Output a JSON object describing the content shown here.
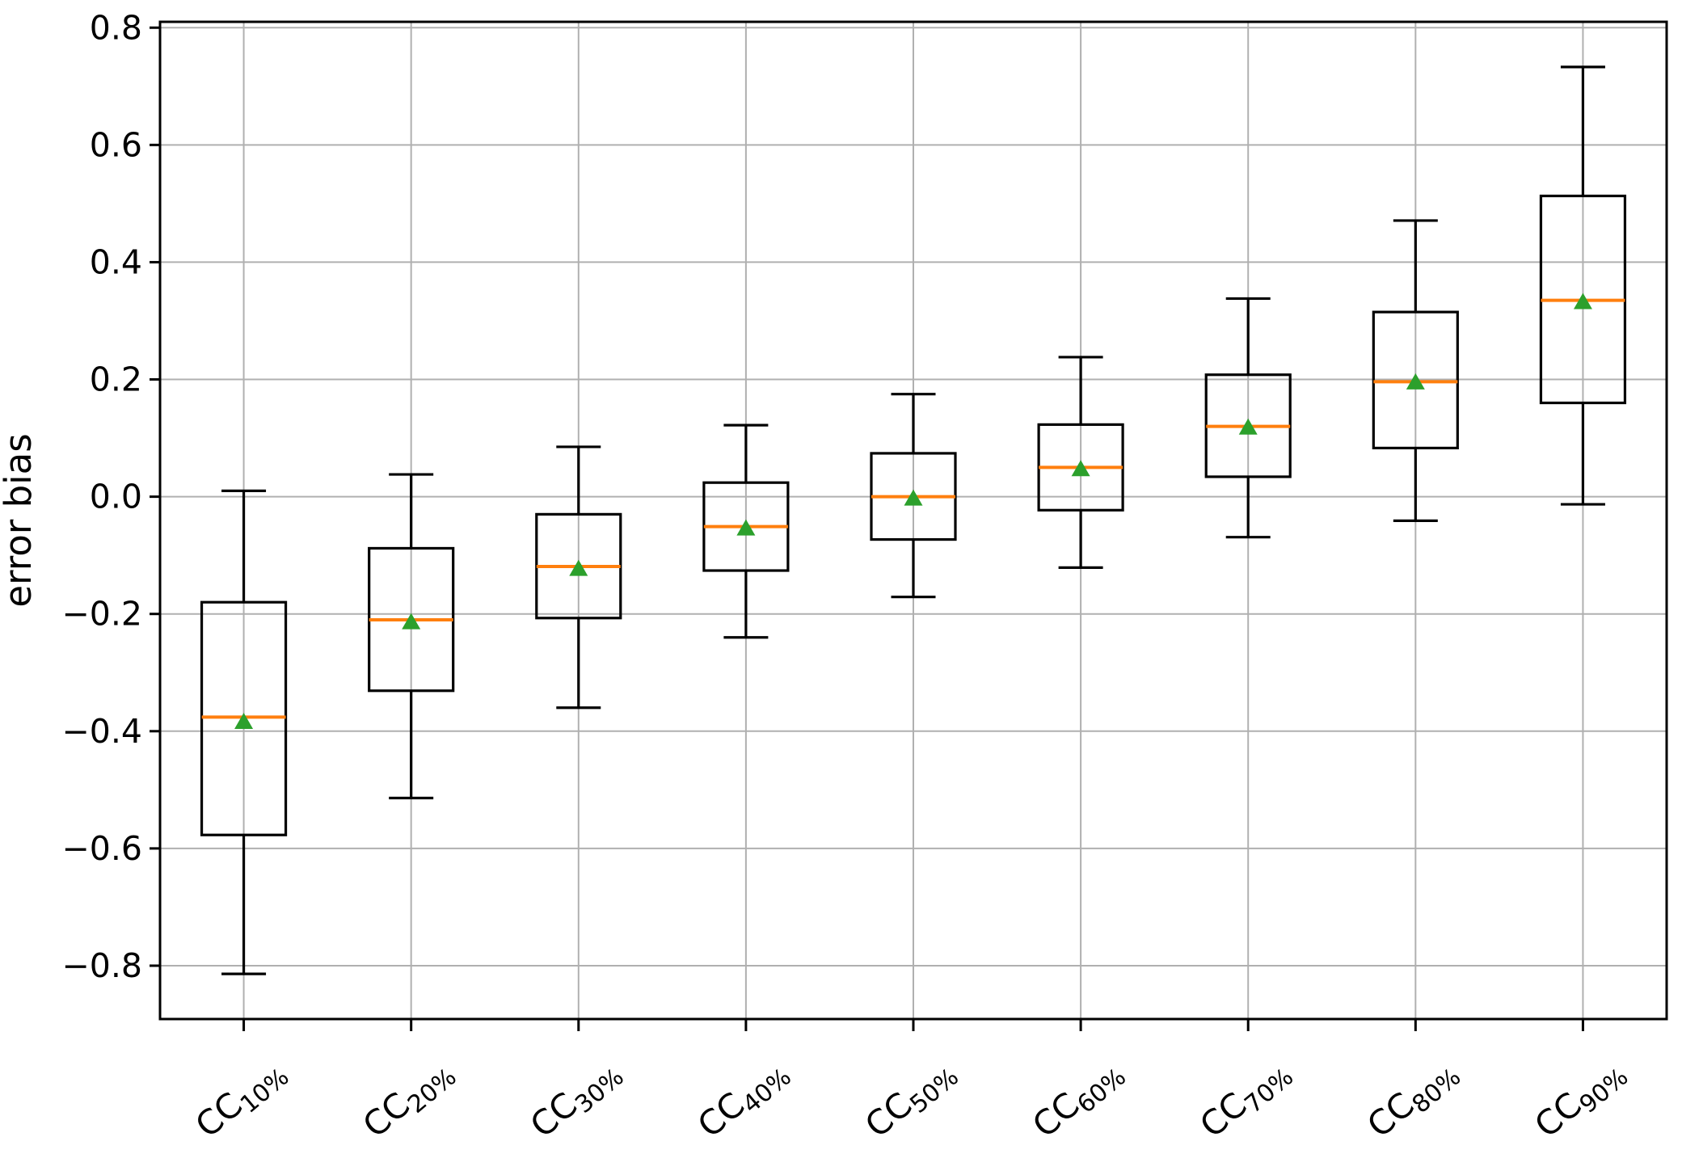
{
  "chart_data": {
    "type": "boxplot",
    "title": "",
    "xlabel": "",
    "ylabel": "error bias",
    "ylim": [
      -0.891,
      0.81
    ],
    "yticks": [
      0.8,
      0.6,
      0.4,
      0.2,
      0.0,
      -0.2,
      -0.4,
      -0.6,
      -0.8
    ],
    "ytick_labels": [
      "0.8",
      "0.6",
      "0.4",
      "0.2",
      "0.0",
      "−0.2",
      "−0.4",
      "−0.6",
      "−0.8"
    ],
    "grid": true,
    "legend": "none",
    "x_tick_rotation_deg": 40,
    "categories": [
      "CC10%",
      "CC20%",
      "CC30%",
      "CC40%",
      "CC50%",
      "CC60%",
      "CC70%",
      "CC80%",
      "CC90%"
    ],
    "category_parts": [
      {
        "base": "CC",
        "sub": "10%"
      },
      {
        "base": "CC",
        "sub": "20%"
      },
      {
        "base": "CC",
        "sub": "30%"
      },
      {
        "base": "CC",
        "sub": "40%"
      },
      {
        "base": "CC",
        "sub": "50%"
      },
      {
        "base": "CC",
        "sub": "60%"
      },
      {
        "base": "CC",
        "sub": "70%"
      },
      {
        "base": "CC",
        "sub": "80%"
      },
      {
        "base": "CC",
        "sub": "90%"
      }
    ],
    "boxes": [
      {
        "label": "CC10%",
        "whisker_low": -0.814,
        "q1": -0.577,
        "median": -0.376,
        "mean": -0.383,
        "q3": -0.18,
        "whisker_high": 0.01
      },
      {
        "label": "CC20%",
        "whisker_low": -0.514,
        "q1": -0.331,
        "median": -0.21,
        "mean": -0.213,
        "q3": -0.088,
        "whisker_high": 0.038
      },
      {
        "label": "CC30%",
        "whisker_low": -0.36,
        "q1": -0.207,
        "median": -0.119,
        "mean": -0.122,
        "q3": -0.03,
        "whisker_high": 0.085
      },
      {
        "label": "CC40%",
        "whisker_low": -0.24,
        "q1": -0.126,
        "median": -0.051,
        "mean": -0.053,
        "q3": 0.024,
        "whisker_high": 0.122
      },
      {
        "label": "CC50%",
        "whisker_low": -0.171,
        "q1": -0.073,
        "median": 0.0,
        "mean": -0.002,
        "q3": 0.074,
        "whisker_high": 0.175
      },
      {
        "label": "CC60%",
        "whisker_low": -0.121,
        "q1": -0.023,
        "median": 0.05,
        "mean": 0.048,
        "q3": 0.123,
        "whisker_high": 0.238
      },
      {
        "label": "CC70%",
        "whisker_low": -0.069,
        "q1": 0.034,
        "median": 0.12,
        "mean": 0.119,
        "q3": 0.208,
        "whisker_high": 0.338
      },
      {
        "label": "CC80%",
        "whisker_low": -0.041,
        "q1": 0.083,
        "median": 0.196,
        "mean": 0.196,
        "q3": 0.315,
        "whisker_high": 0.471
      },
      {
        "label": "CC90%",
        "whisker_low": -0.013,
        "q1": 0.16,
        "median": 0.335,
        "mean": 0.333,
        "q3": 0.513,
        "whisker_high": 0.733
      }
    ],
    "colors": {
      "box_stroke": "#000000",
      "median": "#ff7f0e",
      "mean_marker": "#2ca02c",
      "grid": "#b0b0b0",
      "spine": "#000000",
      "text": "#000000",
      "background": "#ffffff"
    },
    "mean_marker_shape": "triangle-up"
  }
}
